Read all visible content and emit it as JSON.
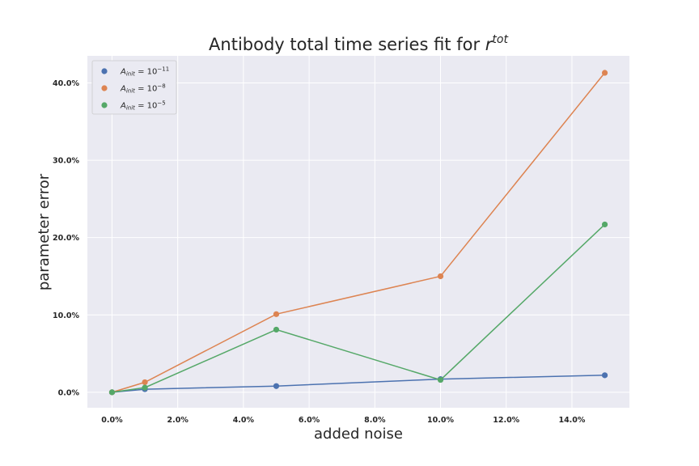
{
  "chart_data": {
    "type": "line",
    "title": "Antibody total time series fit for ",
    "title_math": "r",
    "title_sup": "tot",
    "xlabel": "added noise",
    "ylabel": "parameter error",
    "x": [
      0.0,
      1.0,
      5.0,
      10.0,
      15.0
    ],
    "xlim": [
      -0.75,
      15.75
    ],
    "ylim": [
      -2.0,
      43.5
    ],
    "x_ticks": [
      0,
      2,
      4,
      6,
      8,
      10,
      12,
      14
    ],
    "x_tick_labels": [
      "0.0%",
      "2.0%",
      "4.0%",
      "6.0%",
      "8.0%",
      "10.0%",
      "12.0%",
      "14.0%"
    ],
    "y_ticks": [
      0,
      10,
      20,
      30,
      40
    ],
    "y_tick_labels": [
      "0.0%",
      "10.0%",
      "20.0%",
      "30.0%",
      "40.0%"
    ],
    "grid": true,
    "legend_position": "top-left",
    "series": [
      {
        "name_base": "A",
        "name_sub": "init",
        "name_eq": " = 10",
        "name_exp": "−11",
        "color": "#4c72b0",
        "values": [
          0.0,
          0.4,
          0.8,
          1.7,
          2.2
        ]
      },
      {
        "name_base": "A",
        "name_sub": "init",
        "name_eq": " = 10",
        "name_exp": "−8",
        "color": "#dd8452",
        "values": [
          0.0,
          1.3,
          10.1,
          15.0,
          41.3
        ]
      },
      {
        "name_base": "A",
        "name_sub": "init",
        "name_eq": " = 10",
        "name_exp": "−5",
        "color": "#55a868",
        "values": [
          0.0,
          0.6,
          8.1,
          1.6,
          21.7
        ]
      }
    ]
  },
  "colors": {
    "plot_background": "#eaeaf2",
    "grid": "#ffffff",
    "text": "#262626"
  }
}
